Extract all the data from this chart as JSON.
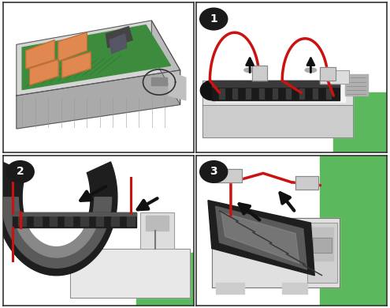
{
  "background_color": "#ffffff",
  "border_color": "#333333",
  "border_linewidth": 1.2,
  "circle_bg": "#1a1a1a",
  "circle_edge": "#1a1a1a",
  "number_fontsize": 10,
  "number_fontweight": "bold",
  "number_color": "#ffffff",
  "green_color": "#5cb85c",
  "red_color": "#cc1111",
  "arrow_color": "#111111",
  "dark_module": "#222222",
  "mid_module": "#555555",
  "light_gray": "#cccccc",
  "white_panel": "#f8f8f8",
  "chassis_color": "#c8c8c8",
  "chassis_dark": "#888888",
  "board_green": "#3d8c3d",
  "heatsink_color": "#e08850",
  "panel_bg": "#ffffff"
}
